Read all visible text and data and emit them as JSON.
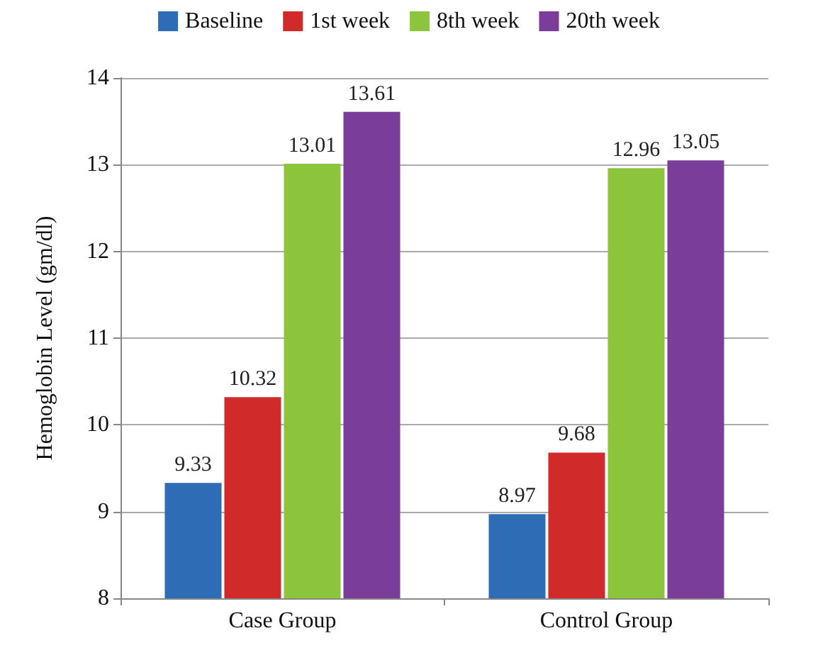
{
  "chart_data": {
    "type": "bar",
    "ylabel": "Hemoglobin Level (gm/dl)",
    "categories": [
      "Case Group",
      "Control Group"
    ],
    "series": [
      {
        "name": "Baseline",
        "color": "#2e6db5",
        "values": [
          9.33,
          8.97
        ]
      },
      {
        "name": "1st week",
        "color": "#d02a2a",
        "values": [
          10.32,
          9.68
        ]
      },
      {
        "name": "8th week",
        "color": "#8cc43c",
        "values": [
          13.01,
          12.96
        ]
      },
      {
        "name": "20th week",
        "color": "#7a3d9a",
        "values": [
          13.61,
          13.05
        ]
      }
    ],
    "ylim": [
      8,
      14
    ],
    "yticks": [
      8,
      9,
      10,
      11,
      12,
      13,
      14
    ],
    "grid": "y",
    "legend": "top",
    "data_labels": true
  }
}
